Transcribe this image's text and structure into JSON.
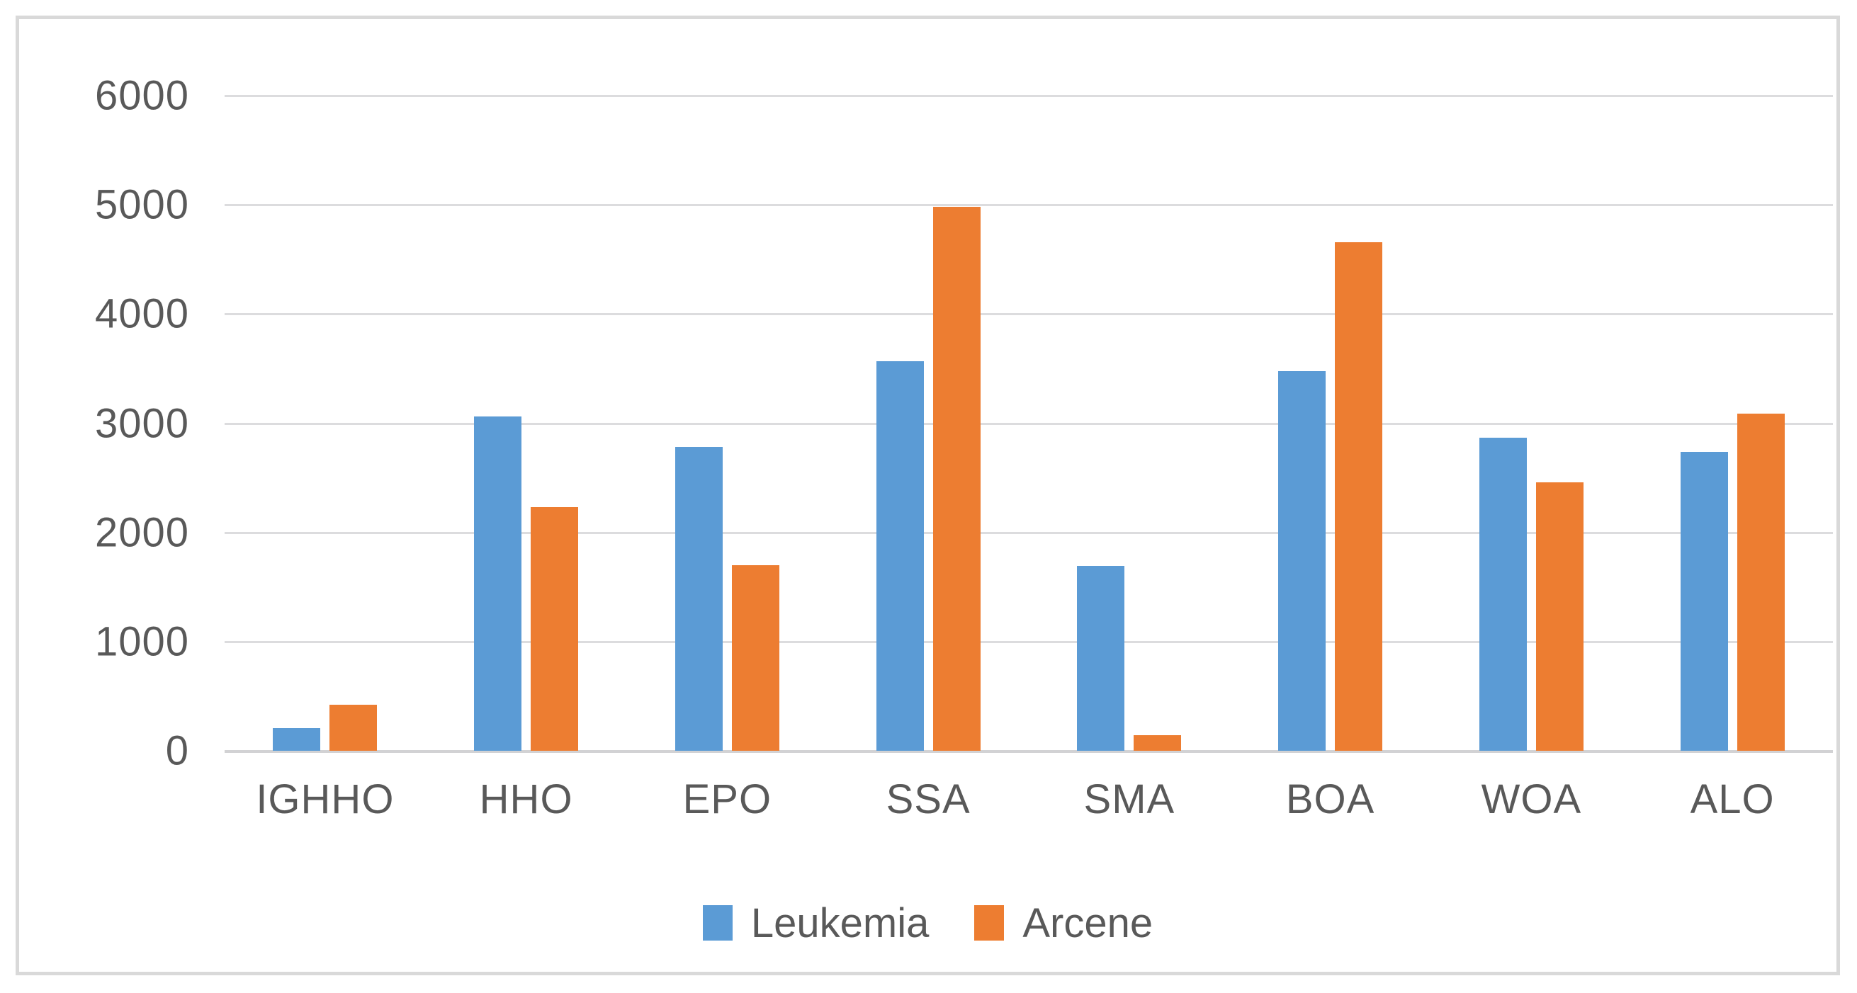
{
  "chart_data": {
    "type": "bar",
    "title": "",
    "xlabel": "",
    "ylabel": "",
    "categories": [
      "IGHHO",
      "HHO",
      "EPO",
      "SSA",
      "SMA",
      "BOA",
      "WOA",
      "ALO"
    ],
    "series": [
      {
        "name": "Leukemia",
        "color": "#5b9bd5",
        "values": [
          210,
          3060,
          2780,
          3570,
          1690,
          3480,
          2870,
          2740
        ]
      },
      {
        "name": "Arcene",
        "color": "#ed7d31",
        "values": [
          420,
          2230,
          1700,
          4980,
          140,
          4660,
          2460,
          3090
        ]
      }
    ],
    "ylim": [
      0,
      6000
    ],
    "ytick_interval": 1000,
    "yticks": [
      "6000",
      "5000",
      "4000",
      "3000",
      "2000",
      "1000",
      "0"
    ],
    "grid": true,
    "legend_position": "bottom-center",
    "gridline_color": "#d9d9d9",
    "text_color": "#595959",
    "frame_border_color": "#d9d9d9",
    "background_color": "#ffffff"
  }
}
